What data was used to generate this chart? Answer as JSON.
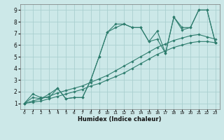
{
  "xlabel": "Humidex (Indice chaleur)",
  "bg_color": "#cce8e8",
  "line_color": "#2e7d6e",
  "grid_color": "#aacfcf",
  "xlim": [
    -0.5,
    23.5
  ],
  "ylim": [
    0.5,
    9.5
  ],
  "xticks": [
    0,
    1,
    2,
    3,
    4,
    5,
    6,
    7,
    8,
    9,
    10,
    11,
    12,
    13,
    14,
    15,
    16,
    17,
    18,
    19,
    20,
    21,
    22,
    23
  ],
  "yticks": [
    1,
    2,
    3,
    4,
    5,
    6,
    7,
    8,
    9
  ],
  "line1_x": [
    0,
    1,
    2,
    3,
    4,
    5,
    6,
    7,
    8,
    9,
    10,
    11,
    12,
    13,
    14,
    15,
    16,
    17,
    18,
    19,
    20,
    21,
    22,
    23
  ],
  "line1_y": [
    1.0,
    1.8,
    1.5,
    1.5,
    2.3,
    1.4,
    1.5,
    1.5,
    3.0,
    5.0,
    7.1,
    7.8,
    7.8,
    7.5,
    7.5,
    6.3,
    6.5,
    5.3,
    8.4,
    7.3,
    7.5,
    9.0,
    9.0,
    6.2
  ],
  "line2_x": [
    0,
    1,
    2,
    3,
    4,
    5,
    6,
    7,
    8,
    9,
    10,
    11,
    12,
    13,
    14,
    15,
    16,
    17,
    18,
    19,
    20,
    21,
    22,
    23
  ],
  "line2_y": [
    1.0,
    1.5,
    1.4,
    1.8,
    2.3,
    1.4,
    1.5,
    1.5,
    3.0,
    5.0,
    7.1,
    7.5,
    7.8,
    7.5,
    7.5,
    6.3,
    7.2,
    5.3,
    8.4,
    7.5,
    7.5,
    9.0,
    9.0,
    6.2
  ],
  "line3_x": [
    0,
    1,
    2,
    3,
    4,
    5,
    6,
    7,
    8,
    9,
    10,
    11,
    12,
    13,
    14,
    15,
    16,
    17,
    18,
    19,
    20,
    21,
    22,
    23
  ],
  "line3_y": [
    1.0,
    1.1,
    1.2,
    1.4,
    1.6,
    1.8,
    2.0,
    2.2,
    2.5,
    2.7,
    3.0,
    3.3,
    3.6,
    4.0,
    4.4,
    4.8,
    5.2,
    5.5,
    5.8,
    6.0,
    6.2,
    6.3,
    6.3,
    6.2
  ],
  "line4_x": [
    0,
    1,
    2,
    3,
    4,
    5,
    6,
    7,
    8,
    9,
    10,
    11,
    12,
    13,
    14,
    15,
    16,
    17,
    18,
    19,
    20,
    21,
    22,
    23
  ],
  "line4_y": [
    1.0,
    1.2,
    1.4,
    1.6,
    1.9,
    2.1,
    2.3,
    2.5,
    2.8,
    3.1,
    3.4,
    3.8,
    4.2,
    4.6,
    5.0,
    5.4,
    5.8,
    6.1,
    6.4,
    6.6,
    6.8,
    6.9,
    6.7,
    6.5
  ]
}
